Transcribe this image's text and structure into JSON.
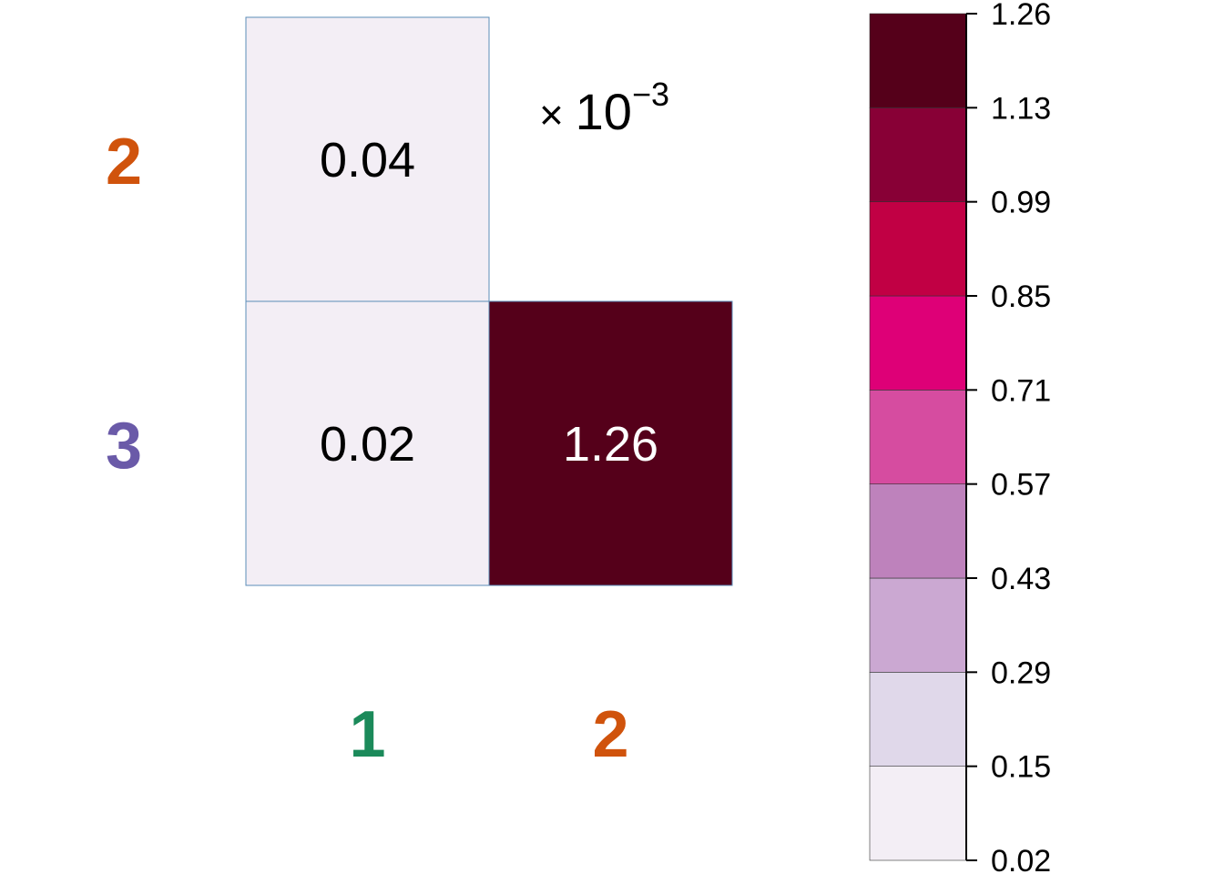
{
  "chart_data": {
    "type": "heatmap",
    "scale_multiplier": {
      "base": "10",
      "exponent": "−3",
      "prefix": "×"
    },
    "x_categories": [
      {
        "label": "1",
        "color": "#1b8a5a"
      },
      {
        "label": "2",
        "color": "#d0530c"
      }
    ],
    "y_categories": [
      {
        "label": "2",
        "color": "#d0530c"
      },
      {
        "label": "3",
        "color": "#6a5aa8"
      }
    ],
    "cells": [
      {
        "row": 0,
        "col": 0,
        "value": 0.04,
        "label": "0.04"
      },
      {
        "row": 1,
        "col": 0,
        "value": 0.02,
        "label": "0.02"
      },
      {
        "row": 1,
        "col": 1,
        "value": 1.26,
        "label": "1.26"
      }
    ],
    "colorbar": {
      "range": [
        0.02,
        1.26
      ],
      "ticks": [
        "0.02",
        "0.15",
        "0.29",
        "0.43",
        "0.57",
        "0.71",
        "0.85",
        "0.99",
        "1.13",
        "1.26"
      ],
      "colors": [
        "#f3eef5",
        "#e0d8ea",
        "#cba8d2",
        "#be82bc",
        "#d64ca0",
        "#de0077",
        "#c10044",
        "#880036",
        "#55001a"
      ],
      "cell_border_color": "#5b8db8"
    }
  }
}
